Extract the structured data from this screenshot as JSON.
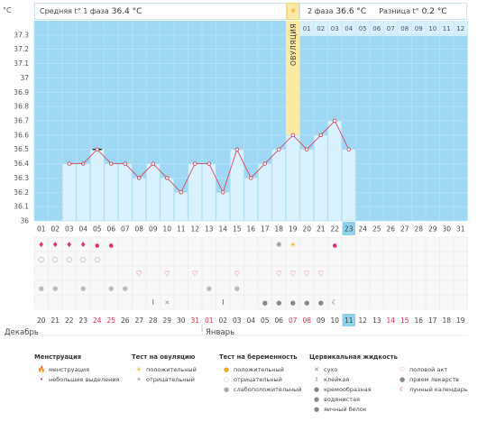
{
  "header": {
    "avg_phase1_label": "Средняя t° 1 фаза",
    "avg_phase1_value": "36.4 °C",
    "phase2_label": "2 фаза",
    "phase2_value": "36.6 °C",
    "diff_label": "Разница t°",
    "diff_value": "0.2 °C"
  },
  "ovulation_label": "ОВУЛЯЦИЯ",
  "colors": {
    "chart_bg": "#9fd8f4",
    "phase2_bg": "#d7f0fb",
    "bar_fill": "#d9f2fd",
    "line": "#d04a5e",
    "ovulation": "#fce9a4",
    "cycle_day_highlight": "#8fd1ec"
  },
  "chart_data": {
    "type": "line",
    "ylabel": "°C",
    "ylim": [
      36.0,
      37.4
    ],
    "yticks": [
      "36",
      "36.1",
      "36.2",
      "36.3",
      "36.4",
      "36.5",
      "36.6",
      "36.7",
      "36.8",
      "36.9",
      "37",
      "37.1",
      "37.2",
      "37.3"
    ],
    "x": [
      "01",
      "02",
      "03",
      "04",
      "05",
      "06",
      "07",
      "08",
      "09",
      "10",
      "11",
      "12",
      "13",
      "14",
      "15",
      "16",
      "17",
      "18",
      "19",
      "20",
      "21",
      "22",
      "23",
      "24",
      "25",
      "26",
      "27",
      "28",
      "29",
      "30",
      "31"
    ],
    "values": [
      null,
      null,
      36.4,
      36.4,
      36.5,
      36.4,
      36.4,
      36.3,
      36.4,
      36.3,
      36.2,
      36.4,
      36.4,
      36.2,
      36.5,
      36.3,
      36.4,
      36.5,
      36.6,
      36.5,
      36.6,
      36.7,
      36.5,
      null,
      null,
      null,
      null,
      null,
      null,
      null,
      null
    ],
    "phase2_top_days": [
      "01",
      "02",
      "03",
      "04",
      "05",
      "06",
      "07",
      "08",
      "09",
      "10",
      "11",
      "12"
    ],
    "ovulation_day": 19,
    "current_day": 23
  },
  "dates": [
    "20",
    "21",
    "22",
    "23",
    "24",
    "25",
    "26",
    "27",
    "28",
    "29",
    "30",
    "31",
    "01",
    "02",
    "03",
    "04",
    "05",
    "06",
    "07",
    "08",
    "09",
    "10",
    "11",
    "12",
    "13",
    "14",
    "15",
    "16",
    "17",
    "18",
    "19"
  ],
  "red_dates": [
    4,
    5,
    11,
    12,
    18,
    19,
    25,
    26
  ],
  "highlight_date": 22,
  "months": {
    "first": "Декабрь",
    "second": "Январь"
  },
  "legend": {
    "menstruation": {
      "title": "Менструация",
      "items": [
        "менструация",
        "небольшие выделения"
      ]
    },
    "ovulation_test": {
      "title": "Тест на овуляцию",
      "items": [
        "положительный",
        "отрицательный"
      ]
    },
    "pregnancy_test": {
      "title": "Тест на беременность",
      "items": [
        "положительный",
        "отрицательный",
        "слабоположительный"
      ]
    },
    "cervical": {
      "title": "Цервикальная жидкость",
      "items": [
        "сухо",
        "клейкая",
        "кремообразная",
        "водянистая",
        "яичный белок"
      ]
    },
    "other": {
      "items": [
        "половой акт",
        "прием лекарств",
        "лунный календарь"
      ]
    }
  }
}
